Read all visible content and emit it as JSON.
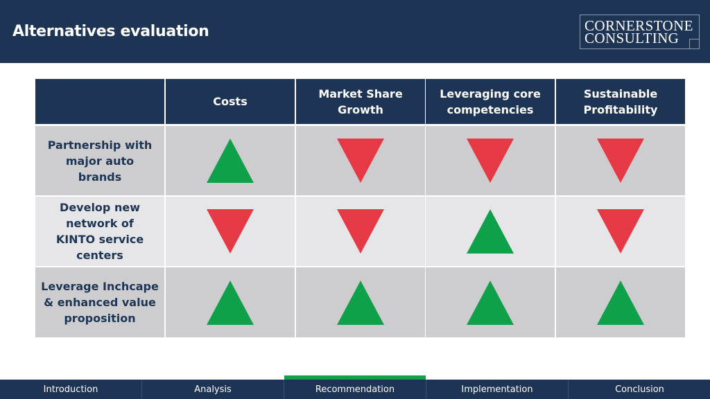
{
  "header": {
    "title": "Alternatives evaluation",
    "logo_line1": "CORNERSTONE",
    "logo_line2": "CONSULTING"
  },
  "table": {
    "columns": [
      "Costs",
      "Market Share Growth",
      "Leveraging core competencies",
      "Sustainable Profitability"
    ],
    "rows": [
      {
        "label": "Partnership with major auto brands",
        "ratings": [
          "up",
          "down",
          "down",
          "down"
        ]
      },
      {
        "label": "Develop new network of KINTO service centers",
        "ratings": [
          "down",
          "down",
          "up",
          "down"
        ]
      },
      {
        "label": "Leverage Inchcape & enhanced value proposition",
        "ratings": [
          "up",
          "up",
          "up",
          "up"
        ]
      }
    ]
  },
  "colors": {
    "navy": "#1e3454",
    "up_green": "#0fa14a",
    "down_red": "#e63946",
    "active_tab": "#13a04a"
  },
  "footer": {
    "tabs": [
      "Introduction",
      "Analysis",
      "Recommendation",
      "Implementation",
      "Conclusion"
    ],
    "active_tab": "Recommendation"
  }
}
